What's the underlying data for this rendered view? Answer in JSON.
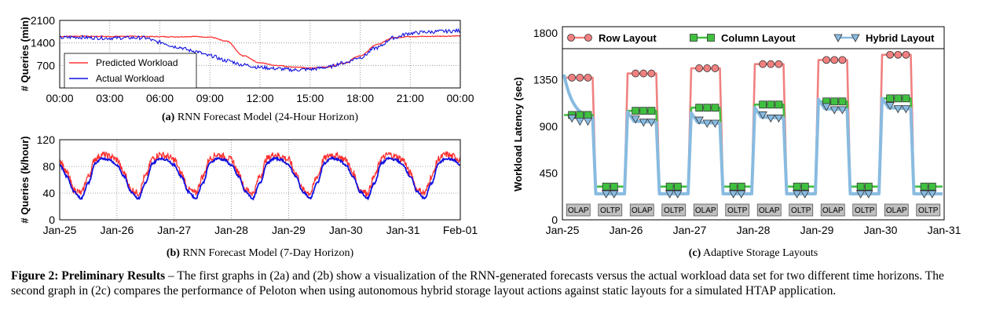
{
  "chart_data": [
    {
      "id": "a",
      "type": "line",
      "subcaption_label": "(a)",
      "subcaption": "RNN Forecast Model (24-Hour Horizon)",
      "ylabel": "# Queries (min)",
      "xlabel": "",
      "x_ticks": [
        "00:00",
        "03:00",
        "06:00",
        "09:00",
        "12:00",
        "15:00",
        "18:00",
        "21:00",
        "00:00"
      ],
      "y_ticks": [
        700,
        1400,
        2100
      ],
      "ylim": [
        0,
        2100
      ],
      "grid": true,
      "legend_position": "lower-left",
      "x_hours": [
        0,
        1,
        2,
        3,
        4,
        5,
        6,
        7,
        8,
        9,
        10,
        11,
        12,
        13,
        14,
        15,
        16,
        17,
        18,
        19,
        20,
        21,
        22,
        23,
        24
      ],
      "series": [
        {
          "name": "Predicted Workload",
          "color": "#ff3030",
          "values": [
            1600,
            1610,
            1605,
            1600,
            1605,
            1600,
            1595,
            1590,
            1600,
            1580,
            1450,
            1000,
            780,
            700,
            650,
            620,
            650,
            760,
            1000,
            1350,
            1560,
            1600,
            1600,
            1610,
            1620
          ]
        },
        {
          "name": "Actual Workload",
          "color": "#1010e0",
          "values": [
            1560,
            1580,
            1560,
            1550,
            1560,
            1560,
            1420,
            1280,
            1150,
            1000,
            850,
            720,
            640,
            600,
            560,
            580,
            640,
            780,
            950,
            1250,
            1560,
            1700,
            1740,
            1760,
            1780
          ]
        }
      ]
    },
    {
      "id": "b",
      "type": "line",
      "subcaption_label": "(b)",
      "subcaption": "RNN Forecast Model (7-Day Horizon)",
      "ylabel": "# Queries (k/hour)",
      "xlabel": "",
      "x_ticks": [
        "Jan-25",
        "Jan-26",
        "Jan-27",
        "Jan-28",
        "Jan-29",
        "Jan-30",
        "Jan-31",
        "Feb-01"
      ],
      "y_ticks": [
        0,
        40,
        80,
        120
      ],
      "ylim": [
        0,
        120
      ],
      "grid": true,
      "day_shape_hours": [
        0,
        3,
        6,
        9,
        12,
        15,
        18,
        21,
        24
      ],
      "series": [
        {
          "name": "",
          "color": "#ff3030",
          "day_shape": [
            90,
            70,
            45,
            40,
            65,
            92,
            98,
            95,
            90
          ]
        },
        {
          "name": "",
          "color": "#1010e0",
          "day_shape": [
            82,
            65,
            42,
            32,
            55,
            85,
            92,
            90,
            82
          ]
        }
      ]
    },
    {
      "id": "c",
      "type": "line",
      "subcaption_label": "(c)",
      "subcaption": "Adaptive Storage Layouts",
      "ylabel": "Workload Latency (sec)",
      "xlabel": "",
      "x_ticks": [
        "Jan-25",
        "Jan-26",
        "Jan-27",
        "Jan-28",
        "Jan-29",
        "Jan-30",
        "Jan-31"
      ],
      "y_ticks": [
        0,
        450,
        900,
        1350,
        1800
      ],
      "ylim": [
        0,
        1800
      ],
      "grid": false,
      "legend_position": "top",
      "segments": [
        {
          "phase": "OLAP",
          "row": 1370,
          "column": 1010,
          "hybrid_start": 1400,
          "hybrid": 960
        },
        {
          "phase": "OLTP",
          "row": 250,
          "column": 320,
          "hybrid": 250
        },
        {
          "phase": "OLAP",
          "row": 1410,
          "column": 1050,
          "hybrid": 950
        },
        {
          "phase": "OLTP",
          "row": 250,
          "column": 320,
          "hybrid": 250
        },
        {
          "phase": "OLAP",
          "row": 1460,
          "column": 1080,
          "hybrid": 940
        },
        {
          "phase": "OLTP",
          "row": 250,
          "column": 320,
          "hybrid": 250
        },
        {
          "phase": "OLAP",
          "row": 1500,
          "column": 1110,
          "hybrid": 990
        },
        {
          "phase": "OLTP",
          "row": 250,
          "column": 320,
          "hybrid": 250
        },
        {
          "phase": "OLAP",
          "row": 1540,
          "column": 1140,
          "hybrid": 1070
        },
        {
          "phase": "OLTP",
          "row": 250,
          "column": 320,
          "hybrid": 250
        },
        {
          "phase": "OLAP",
          "row": 1590,
          "column": 1170,
          "hybrid": 1080
        },
        {
          "phase": "OLTP",
          "row": 250,
          "column": 320,
          "hybrid": 250
        }
      ],
      "series": [
        {
          "name": "Row Layout",
          "color": "#f08080",
          "marker": "circle"
        },
        {
          "name": "Column Layout",
          "color": "#40c040",
          "marker": "square"
        },
        {
          "name": "Hybrid Layout",
          "color": "#88bbe0",
          "marker": "triangle-down"
        }
      ]
    }
  ],
  "caption": {
    "label": "Figure 2: Preliminary Results",
    "text": " – The first graphs in (2a) and (2b) show a visualization of the RNN-generated forecasts versus the actual workload data set for two different time horizons. The second graph in (2c) compares the performance of Peloton when using autonomous hybrid storage layout actions against static layouts for a simulated HTAP application."
  }
}
